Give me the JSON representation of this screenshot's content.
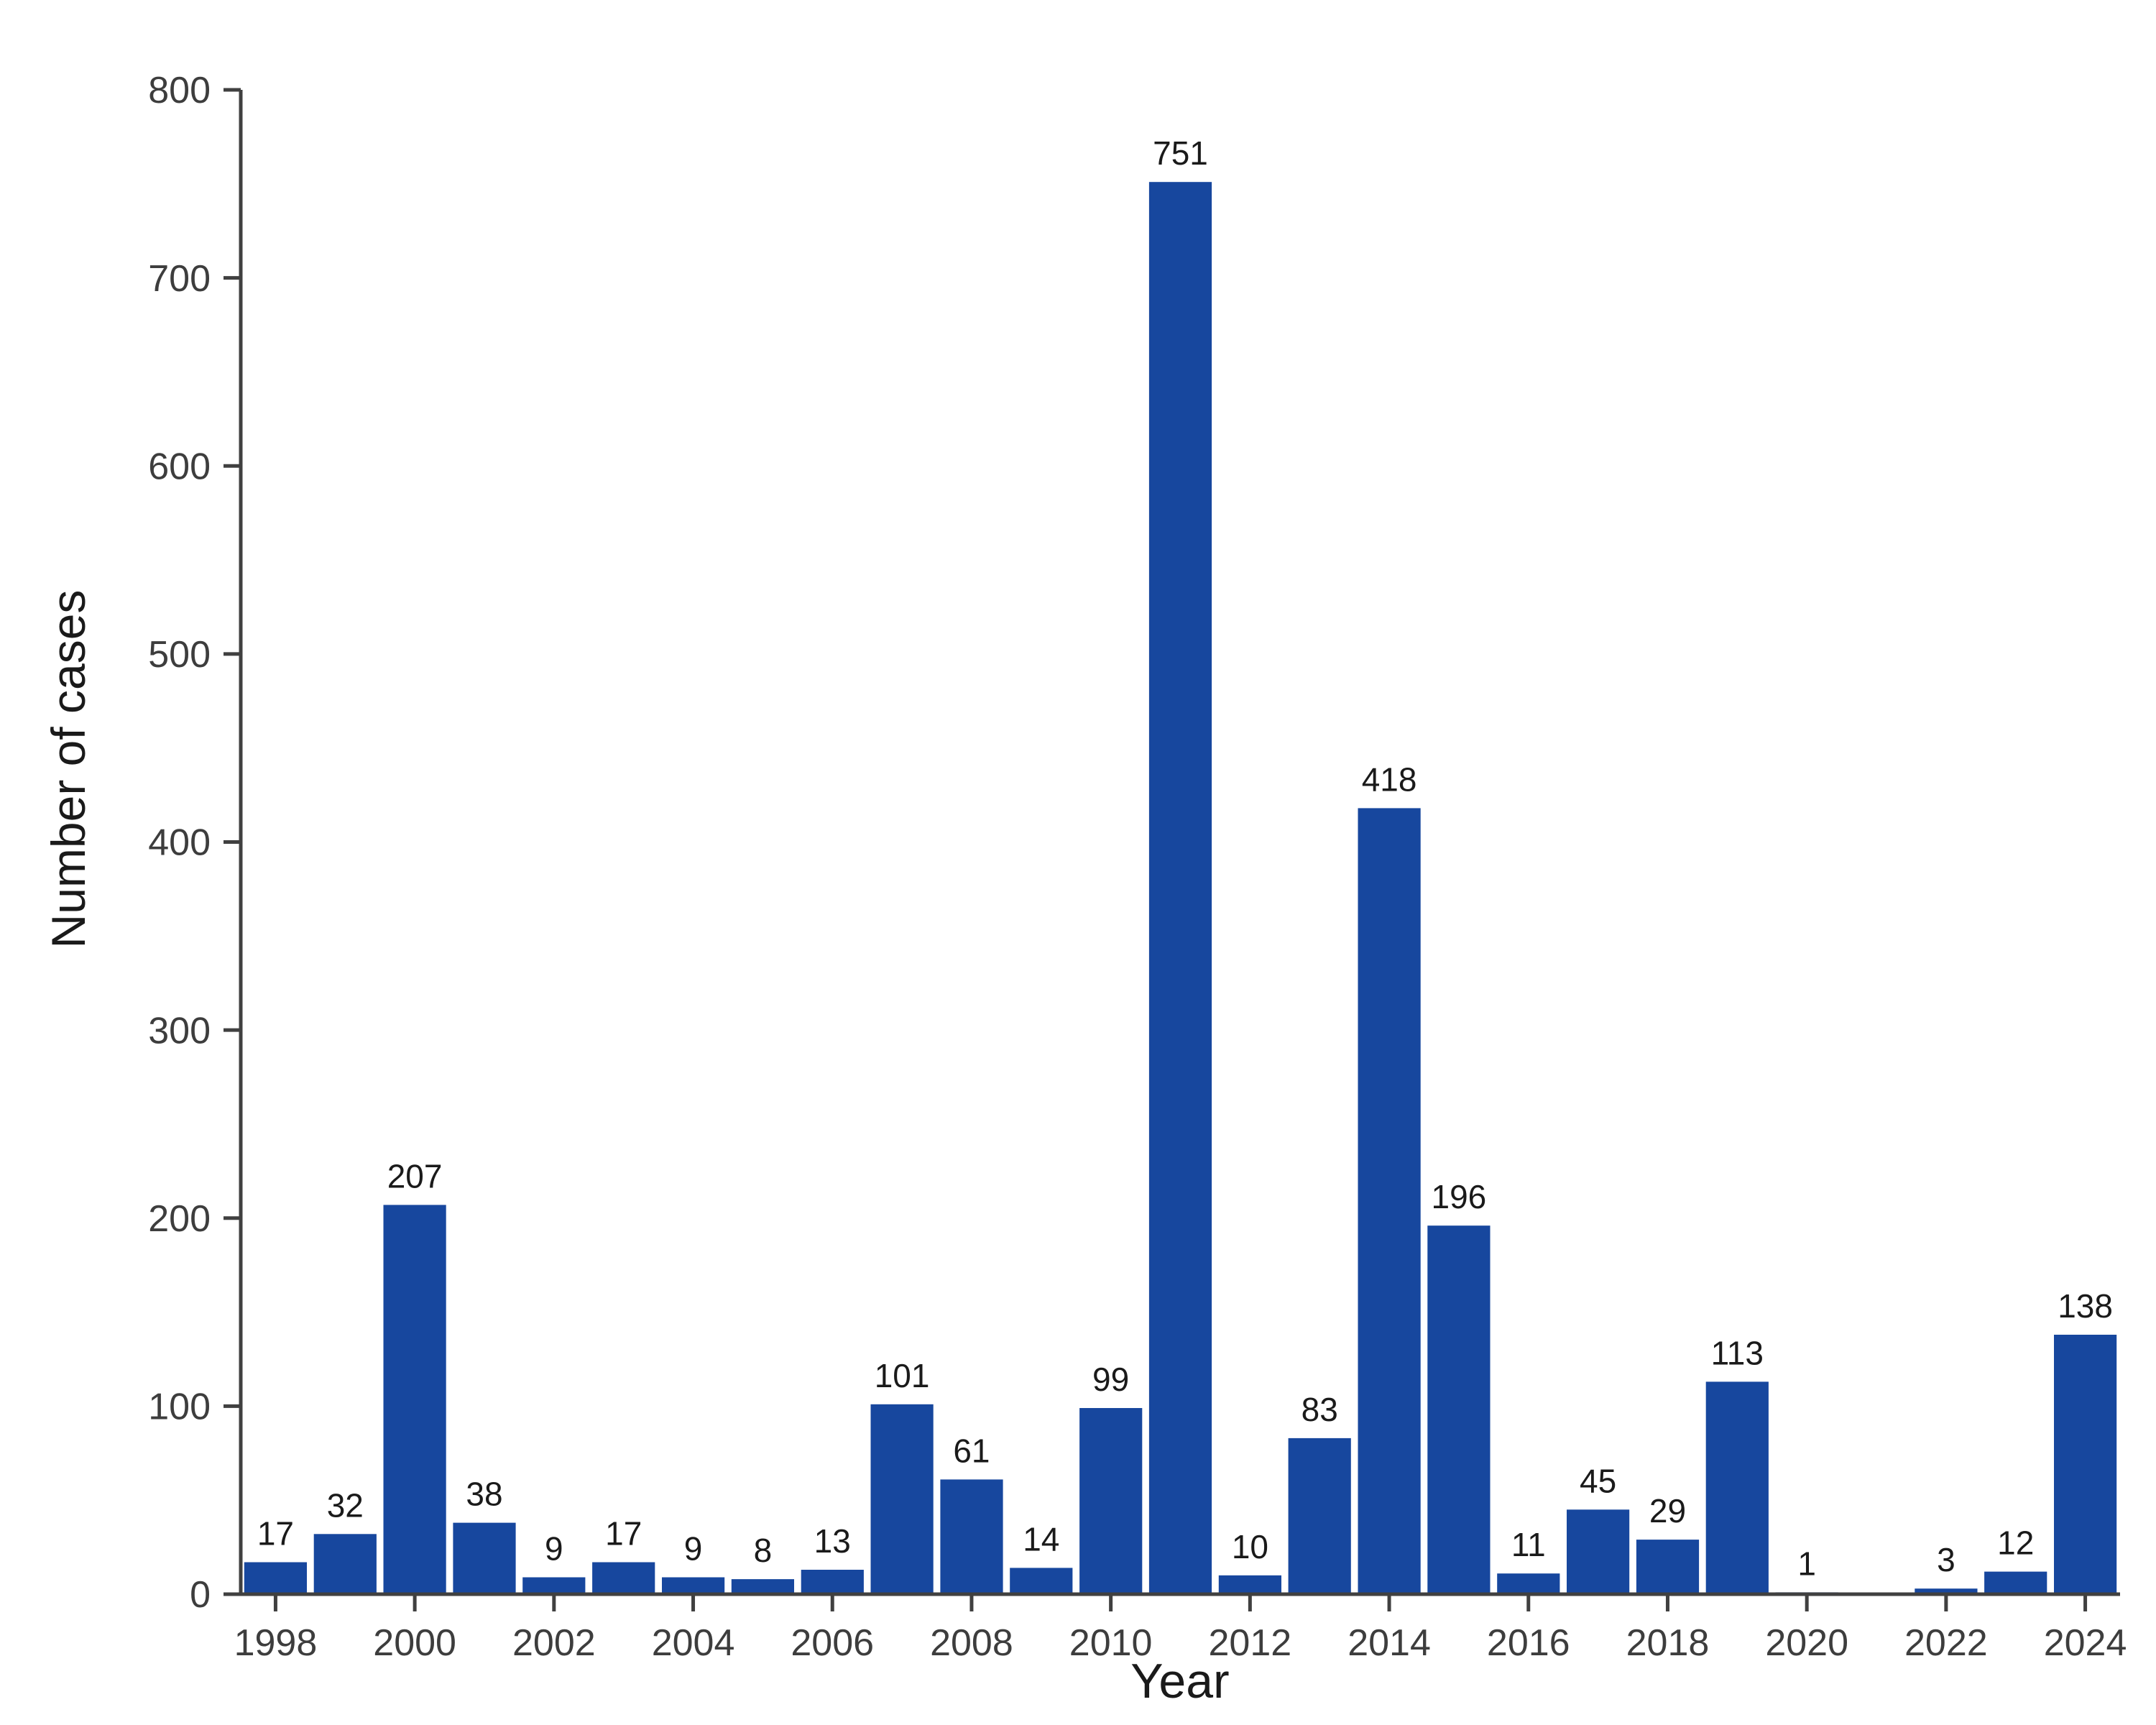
{
  "page": {
    "background": "#ffffff"
  },
  "chart_data": {
    "type": "bar",
    "title": "",
    "xlabel": "Year",
    "ylabel": "Number of cases",
    "categories": [
      1998,
      1999,
      2000,
      2001,
      2002,
      2003,
      2004,
      2005,
      2006,
      2007,
      2008,
      2009,
      2010,
      2011,
      2012,
      2013,
      2014,
      2015,
      2016,
      2017,
      2018,
      2019,
      2020,
      2021,
      2022,
      2023,
      2024
    ],
    "values": [
      17,
      32,
      207,
      38,
      9,
      17,
      9,
      8,
      13,
      101,
      61,
      14,
      99,
      751,
      10,
      83,
      418,
      196,
      11,
      45,
      29,
      113,
      1,
      0,
      3,
      12,
      138
    ],
    "bar_labels": [
      "17",
      "32",
      "207",
      "38",
      "9",
      "17",
      "9",
      "8",
      "13",
      "101",
      "61",
      "14",
      "99",
      "751",
      "10",
      "83",
      "418",
      "196",
      "11",
      "45",
      "29",
      "113",
      "1",
      "",
      "3",
      "12",
      "138"
    ],
    "ylim": [
      0,
      800
    ],
    "yticks": [
      0,
      100,
      200,
      300,
      400,
      500,
      600,
      700,
      800
    ],
    "xtick_years": [
      1998,
      2000,
      2002,
      2004,
      2006,
      2008,
      2010,
      2012,
      2014,
      2016,
      2018,
      2020,
      2022,
      2024
    ],
    "bar_color": "#17479E",
    "axis_color": "#404040",
    "tick_label_color": "#3d3d3d",
    "value_label_color": "#1a1a1a",
    "grid": false,
    "legend": null
  }
}
